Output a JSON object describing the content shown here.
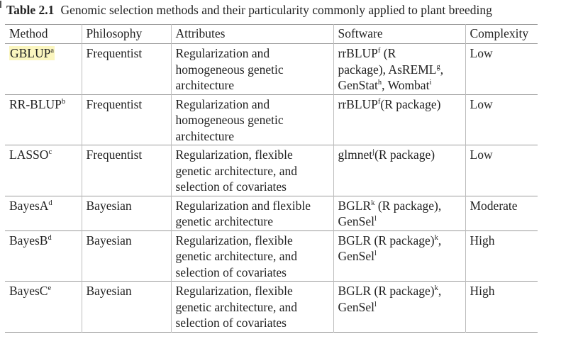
{
  "caption": {
    "label": "Table 2.1",
    "text": "Genomic selection methods and their particularity commonly applied to plant breeding"
  },
  "columns": [
    "Method",
    "Philosophy",
    "Attributes",
    "Software",
    "Complexity"
  ],
  "rows": [
    {
      "method": "GBLUP",
      "method_sup": "a",
      "philosophy": "Frequentist",
      "attributes": [
        "Regularization and",
        "homogeneous genetic",
        "architecture"
      ],
      "software": "rrBLUP<sup>f</sup> (R<br>package), AsREML<sup>g</sup>,<br>GenStat<sup>h</sup>, Wombat<sup>i</sup>",
      "complexity": "Low",
      "highlighted": true
    },
    {
      "method": "RR-BLUP",
      "method_sup": "b",
      "philosophy": "Frequentist",
      "attributes": [
        "Regularization and",
        "homogeneous genetic",
        "architecture"
      ],
      "software": "rrBLUP<sup>f</sup>(R package)",
      "complexity": "Low",
      "highlighted": false
    },
    {
      "method": "LASSO",
      "method_sup": "c",
      "philosophy": "Frequentist",
      "attributes": [
        "Regularization, flexible",
        "genetic architecture, and",
        "selection of covariates"
      ],
      "software": "glmnet<sup>j</sup>(R package)",
      "complexity": "Low",
      "highlighted": false
    },
    {
      "method": "BayesA",
      "method_sup": "d",
      "philosophy": "Bayesian",
      "attributes": [
        "Regularization and flexible",
        "genetic architecture"
      ],
      "software": "BGLR<sup>k</sup> (R package),<br>GenSel<sup>l</sup>",
      "complexity": "Moderate",
      "highlighted": false
    },
    {
      "method": "BayesB",
      "method_sup": "d",
      "philosophy": "Bayesian",
      "attributes": [
        "Regularization, flexible",
        "genetic architecture, and",
        "selection of covariates"
      ],
      "software": "BGLR (R package)<sup>k</sup>,<br>GenSel<sup>l</sup>",
      "complexity": "High",
      "highlighted": false
    },
    {
      "method": "BayesC",
      "method_sup": "e",
      "philosophy": "Bayesian",
      "attributes": [
        "Regularization, flexible",
        "genetic architecture, and",
        "selection of covariates"
      ],
      "software": "BGLR (R package)<sup>k</sup>,<br>GenSel<sup>l</sup>",
      "complexity": "High",
      "highlighted": false
    }
  ],
  "colors": {
    "highlight": "#fbf6bf",
    "rule": "#9a9a9a",
    "text": "#222222"
  }
}
